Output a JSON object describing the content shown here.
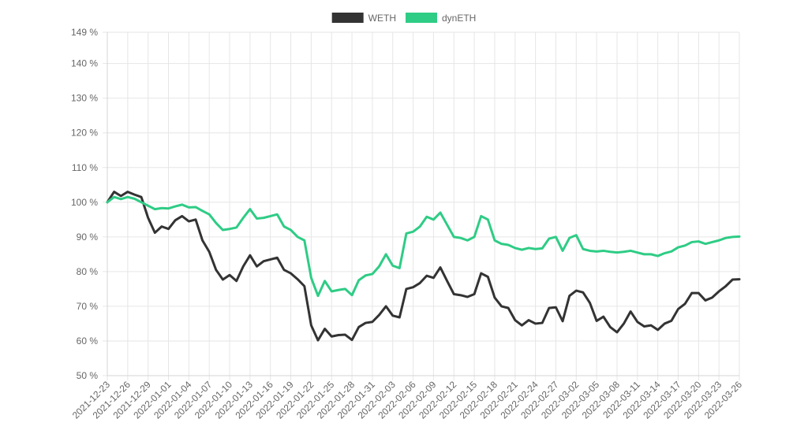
{
  "chart_data": {
    "type": "line",
    "title": "",
    "xlabel": "",
    "ylabel": "",
    "y_unit": "%",
    "ylim": [
      50,
      149
    ],
    "y_ticks": [
      50,
      60,
      70,
      80,
      90,
      100,
      110,
      120,
      130,
      140,
      149
    ],
    "y_tick_labels": [
      "50 %",
      "60 %",
      "70 %",
      "80 %",
      "90 %",
      "100 %",
      "110 %",
      "120 %",
      "130 %",
      "140 %",
      "149 %"
    ],
    "grid": true,
    "legend": "top-center",
    "x_start": "2021-12-23",
    "x_tick_labels": [
      "2021-12-23",
      "2021-12-26",
      "2021-12-29",
      "2022-01-01",
      "2022-01-04",
      "2022-01-07",
      "2022-01-10",
      "2022-01-13",
      "2022-01-16",
      "2022-01-19",
      "2022-01-22",
      "2022-01-25",
      "2022-01-28",
      "2022-01-31",
      "2022-02-03",
      "2022-02-06",
      "2022-02-09",
      "2022-02-12",
      "2022-02-15",
      "2022-02-18",
      "2022-02-21",
      "2022-02-24",
      "2022-02-27",
      "2022-03-02",
      "2022-03-05",
      "2022-03-08",
      "2022-03-11",
      "2022-03-14",
      "2022-03-17",
      "2022-03-20",
      "2022-03-23",
      "2022-03-26"
    ],
    "series": [
      {
        "name": "WETH",
        "color": "#333333",
        "values": [
          100.0,
          103.0,
          101.8,
          103.0,
          102.2,
          101.5,
          95.5,
          91.2,
          93.0,
          92.3,
          94.8,
          96.0,
          94.5,
          95.0,
          89.0,
          85.7,
          80.5,
          77.7,
          79.0,
          77.3,
          81.5,
          84.7,
          81.5,
          83.0,
          83.5,
          84.0,
          80.5,
          79.5,
          77.8,
          75.8,
          64.5,
          60.2,
          63.5,
          61.3,
          61.7,
          61.8,
          60.3,
          64.0,
          65.2,
          65.5,
          67.5,
          70.0,
          67.3,
          66.8,
          75.0,
          75.5,
          76.7,
          78.8,
          78.2,
          81.2,
          77.3,
          73.5,
          73.2,
          72.7,
          73.5,
          79.5,
          78.5,
          72.5,
          70.0,
          69.5,
          66.0,
          64.5,
          66.0,
          65.0,
          65.2,
          69.5,
          69.7,
          65.7,
          73.0,
          74.5,
          74.0,
          71.0,
          65.8,
          67.0,
          64.0,
          62.5,
          65.0,
          68.5,
          65.5,
          64.2,
          64.5,
          63.2,
          65.0,
          65.8,
          69.2,
          70.7,
          73.8,
          73.8,
          71.7,
          72.5,
          74.3,
          75.8,
          77.7,
          77.8
        ]
      },
      {
        "name": "dynETH",
        "color": "#2ecc85",
        "values": [
          100.0,
          101.5,
          100.9,
          101.5,
          101.0,
          100.0,
          99.0,
          98.0,
          98.3,
          98.2,
          98.8,
          99.3,
          98.5,
          98.6,
          97.5,
          96.5,
          94.0,
          92.0,
          92.3,
          92.7,
          95.5,
          98.0,
          95.3,
          95.5,
          96.0,
          96.5,
          93.0,
          92.0,
          90.0,
          89.0,
          78.2,
          73.0,
          77.3,
          74.3,
          74.7,
          75.0,
          73.2,
          77.5,
          78.9,
          79.3,
          81.5,
          85.0,
          81.7,
          81.0,
          91.0,
          91.5,
          93.0,
          95.8,
          95.0,
          97.0,
          93.5,
          90.0,
          89.7,
          89.0,
          90.0,
          96.0,
          95.0,
          89.0,
          88.0,
          87.7,
          86.8,
          86.3,
          86.8,
          86.5,
          86.7,
          89.5,
          90.0,
          86.0,
          89.7,
          90.5,
          86.5,
          86.0,
          85.8,
          86.0,
          85.7,
          85.5,
          85.7,
          86.0,
          85.5,
          85.0,
          85.0,
          84.5,
          85.3,
          85.8,
          87.0,
          87.5,
          88.5,
          88.7,
          88.0,
          88.5,
          89.0,
          89.7,
          90.0,
          90.1
        ]
      }
    ]
  }
}
